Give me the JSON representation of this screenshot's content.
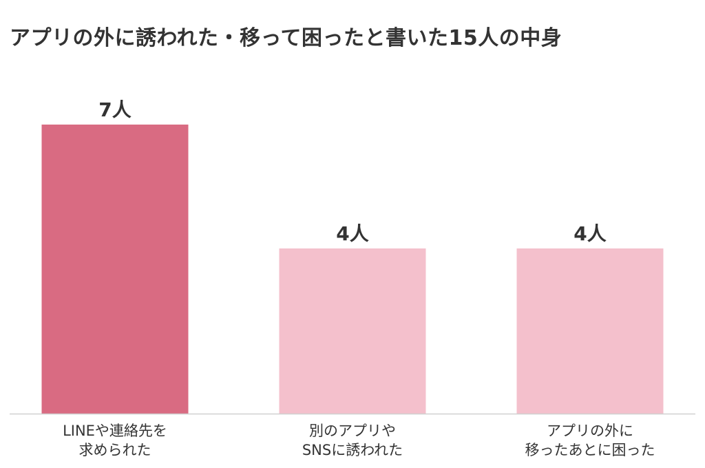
{
  "chart_data": {
    "type": "bar",
    "title": "アプリの外に誘われた・移って困ったと書いた15人の中身",
    "categories": [
      [
        "LINEや連絡先を",
        "求められた"
      ],
      [
        "別のアプリや",
        "SNSに誘われた"
      ],
      [
        "アプリの外に",
        "移ったあとに困った"
      ]
    ],
    "values": [
      7,
      4,
      4
    ],
    "value_labels": [
      "7人",
      "4人",
      "4人"
    ],
    "unit": "人",
    "ylim": [
      0,
      7
    ],
    "grid": false,
    "legend": "none",
    "colors": [
      "#d96b82",
      "#f4c0cc",
      "#f4c0cc"
    ],
    "axis_color": "#d0d0d0"
  }
}
